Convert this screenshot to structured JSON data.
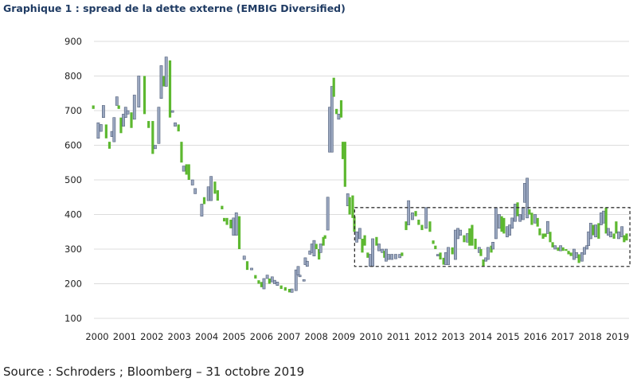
{
  "chart_data": {
    "type": "candlestick",
    "title": "Graphique 1 : spread de la dette externe (EMBIG Diversified)",
    "source": "Source : Schroders ; Bloomberg – 31 octobre 2019",
    "xlabel": "",
    "ylabel": "",
    "ylim": [
      100,
      900
    ],
    "xlim": [
      2000,
      2019
    ],
    "grid": true,
    "yticks": [
      "900",
      "800",
      "700",
      "600",
      "500",
      "400",
      "300",
      "200",
      "100"
    ],
    "xticks": [
      "2000",
      "2001",
      "2002",
      "2003",
      "2004",
      "2005",
      "2006",
      "2007",
      "2008",
      "2009",
      "2010",
      "2011",
      "2012",
      "2013",
      "2014",
      "2015",
      "2016",
      "2017",
      "2018",
      "2019"
    ],
    "colors": {
      "g": "#5db830",
      "b": "#9aa7c0",
      "b_stroke": "#4f5d78",
      "title": "#1f3b63"
    },
    "highlight_box": {
      "x": [
        2009.4,
        2019.45
      ],
      "y": [
        250,
        420
      ],
      "style": "dashed"
    },
    "candles_format": [
      "year",
      "low",
      "high",
      "color"
    ],
    "candles": [
      [
        1999.86,
        705,
        715,
        "g"
      ],
      [
        2000.04,
        620,
        665,
        "b"
      ],
      [
        2000.14,
        640,
        660,
        "b"
      ],
      [
        2000.23,
        680,
        715,
        "b"
      ],
      [
        2000.33,
        620,
        660,
        "g"
      ],
      [
        2000.45,
        590,
        610,
        "g"
      ],
      [
        2000.54,
        625,
        640,
        "b"
      ],
      [
        2000.62,
        610,
        680,
        "b"
      ],
      [
        2000.72,
        715,
        740,
        "b"
      ],
      [
        2000.79,
        705,
        715,
        "g"
      ],
      [
        2000.87,
        635,
        680,
        "g"
      ],
      [
        2000.96,
        655,
        690,
        "b"
      ],
      [
        2001.04,
        680,
        710,
        "b"
      ],
      [
        2001.12,
        690,
        700,
        "b"
      ],
      [
        2001.25,
        650,
        695,
        "g"
      ],
      [
        2001.36,
        675,
        745,
        "b"
      ],
      [
        2001.52,
        710,
        800,
        "b"
      ],
      [
        2001.73,
        690,
        800,
        "g"
      ],
      [
        2001.88,
        650,
        670,
        "g"
      ],
      [
        2002.03,
        575,
        670,
        "g"
      ],
      [
        2002.12,
        590,
        600,
        "b"
      ],
      [
        2002.25,
        605,
        710,
        "b"
      ],
      [
        2002.34,
        735,
        830,
        "b"
      ],
      [
        2002.44,
        770,
        800,
        "g"
      ],
      [
        2002.52,
        770,
        855,
        "b"
      ],
      [
        2002.66,
        680,
        845,
        "g"
      ],
      [
        2002.75,
        695,
        700,
        "b"
      ],
      [
        2002.85,
        655,
        665,
        "b"
      ],
      [
        2002.97,
        640,
        660,
        "g"
      ],
      [
        2003.08,
        550,
        610,
        "g"
      ],
      [
        2003.16,
        525,
        540,
        "b"
      ],
      [
        2003.26,
        515,
        545,
        "g"
      ],
      [
        2003.35,
        500,
        545,
        "g"
      ],
      [
        2003.48,
        485,
        500,
        "b"
      ],
      [
        2003.58,
        460,
        475,
        "b"
      ],
      [
        2003.82,
        395,
        430,
        "b"
      ],
      [
        2003.91,
        430,
        450,
        "g"
      ],
      [
        2004.06,
        440,
        480,
        "b"
      ],
      [
        2004.16,
        440,
        510,
        "b"
      ],
      [
        2004.3,
        460,
        495,
        "g"
      ],
      [
        2004.4,
        440,
        470,
        "g"
      ],
      [
        2004.56,
        415,
        425,
        "g"
      ],
      [
        2004.64,
        380,
        390,
        "g"
      ],
      [
        2004.74,
        370,
        390,
        "g"
      ],
      [
        2004.88,
        360,
        385,
        "g"
      ],
      [
        2004.98,
        340,
        390,
        "b"
      ],
      [
        2005.08,
        340,
        405,
        "b"
      ],
      [
        2005.19,
        300,
        395,
        "g"
      ],
      [
        2005.37,
        270,
        280,
        "b"
      ],
      [
        2005.48,
        240,
        265,
        "g"
      ],
      [
        2005.64,
        240,
        245,
        "b"
      ],
      [
        2005.78,
        215,
        225,
        "g"
      ],
      [
        2005.9,
        200,
        210,
        "g"
      ],
      [
        2006.0,
        190,
        205,
        "g"
      ],
      [
        2006.09,
        185,
        215,
        "b"
      ],
      [
        2006.21,
        215,
        225,
        "b"
      ],
      [
        2006.29,
        200,
        215,
        "g"
      ],
      [
        2006.39,
        205,
        220,
        "b"
      ],
      [
        2006.48,
        200,
        210,
        "b"
      ],
      [
        2006.58,
        195,
        205,
        "b"
      ],
      [
        2006.72,
        185,
        195,
        "g"
      ],
      [
        2006.87,
        180,
        190,
        "g"
      ],
      [
        2007.02,
        175,
        185,
        "g"
      ],
      [
        2007.11,
        175,
        185,
        "b"
      ],
      [
        2007.26,
        180,
        240,
        "b"
      ],
      [
        2007.34,
        225,
        250,
        "b"
      ],
      [
        2007.4,
        220,
        225,
        "b"
      ],
      [
        2007.55,
        208,
        212,
        "b"
      ],
      [
        2007.6,
        255,
        275,
        "b"
      ],
      [
        2007.67,
        250,
        265,
        "b"
      ],
      [
        2007.77,
        285,
        295,
        "b"
      ],
      [
        2007.84,
        290,
        315,
        "b"
      ],
      [
        2007.92,
        280,
        325,
        "b"
      ],
      [
        2008.0,
        300,
        315,
        "g"
      ],
      [
        2008.1,
        270,
        300,
        "g"
      ],
      [
        2008.16,
        290,
        315,
        "b"
      ],
      [
        2008.26,
        310,
        335,
        "g"
      ],
      [
        2008.32,
        330,
        340,
        "g"
      ],
      [
        2008.42,
        355,
        450,
        "b"
      ],
      [
        2008.49,
        580,
        710,
        "b"
      ],
      [
        2008.57,
        580,
        770,
        "b"
      ],
      [
        2008.64,
        740,
        795,
        "g"
      ],
      [
        2008.74,
        690,
        705,
        "g"
      ],
      [
        2008.82,
        675,
        690,
        "b"
      ],
      [
        2008.91,
        680,
        730,
        "g"
      ],
      [
        2008.97,
        560,
        610,
        "g"
      ],
      [
        2009.05,
        480,
        610,
        "g"
      ],
      [
        2009.15,
        425,
        460,
        "b"
      ],
      [
        2009.22,
        400,
        450,
        "g"
      ],
      [
        2009.33,
        390,
        455,
        "g"
      ],
      [
        2009.39,
        350,
        395,
        "g"
      ],
      [
        2009.48,
        320,
        350,
        "b"
      ],
      [
        2009.59,
        330,
        360,
        "b"
      ],
      [
        2009.68,
        290,
        330,
        "g"
      ],
      [
        2009.77,
        310,
        340,
        "g"
      ],
      [
        2009.88,
        275,
        290,
        "g"
      ],
      [
        2009.97,
        250,
        285,
        "b"
      ],
      [
        2010.06,
        250,
        330,
        "b"
      ],
      [
        2010.2,
        310,
        335,
        "g"
      ],
      [
        2010.29,
        295,
        315,
        "b"
      ],
      [
        2010.41,
        290,
        300,
        "b"
      ],
      [
        2010.49,
        275,
        295,
        "g"
      ],
      [
        2010.55,
        265,
        300,
        "b"
      ],
      [
        2010.64,
        270,
        285,
        "b"
      ],
      [
        2010.76,
        270,
        285,
        "b"
      ],
      [
        2010.9,
        272,
        285,
        "b"
      ],
      [
        2011.05,
        275,
        285,
        "b"
      ],
      [
        2011.13,
        280,
        290,
        "g"
      ],
      [
        2011.28,
        355,
        380,
        "g"
      ],
      [
        2011.37,
        370,
        440,
        "b"
      ],
      [
        2011.51,
        385,
        405,
        "b"
      ],
      [
        2011.63,
        395,
        410,
        "g"
      ],
      [
        2011.74,
        370,
        385,
        "g"
      ],
      [
        2011.86,
        355,
        370,
        "g"
      ],
      [
        2012.01,
        360,
        420,
        "b"
      ],
      [
        2012.15,
        350,
        380,
        "g"
      ],
      [
        2012.27,
        315,
        325,
        "g"
      ],
      [
        2012.35,
        300,
        310,
        "g"
      ],
      [
        2012.44,
        280,
        285,
        "b"
      ],
      [
        2012.53,
        270,
        290,
        "g"
      ],
      [
        2012.65,
        255,
        275,
        "g"
      ],
      [
        2012.73,
        255,
        290,
        "b"
      ],
      [
        2012.82,
        255,
        305,
        "b"
      ],
      [
        2012.97,
        285,
        305,
        "g"
      ],
      [
        2013.08,
        270,
        355,
        "b"
      ],
      [
        2013.17,
        330,
        360,
        "b"
      ],
      [
        2013.26,
        340,
        355,
        "b"
      ],
      [
        2013.4,
        320,
        340,
        "g"
      ],
      [
        2013.52,
        320,
        345,
        "b"
      ],
      [
        2013.6,
        310,
        360,
        "g"
      ],
      [
        2013.69,
        310,
        370,
        "g"
      ],
      [
        2013.81,
        300,
        330,
        "g"
      ],
      [
        2013.95,
        290,
        305,
        "b"
      ],
      [
        2014.01,
        280,
        300,
        "g"
      ],
      [
        2014.1,
        250,
        270,
        "g"
      ],
      [
        2014.19,
        265,
        275,
        "b"
      ],
      [
        2014.27,
        270,
        305,
        "b"
      ],
      [
        2014.39,
        290,
        310,
        "g"
      ],
      [
        2014.45,
        300,
        320,
        "b"
      ],
      [
        2014.56,
        330,
        420,
        "b"
      ],
      [
        2014.68,
        360,
        400,
        "b"
      ],
      [
        2014.77,
        350,
        395,
        "g"
      ],
      [
        2014.85,
        345,
        390,
        "g"
      ],
      [
        2014.97,
        335,
        365,
        "b"
      ],
      [
        2015.06,
        340,
        370,
        "b"
      ],
      [
        2015.15,
        360,
        390,
        "b"
      ],
      [
        2015.26,
        380,
        430,
        "b"
      ],
      [
        2015.35,
        395,
        435,
        "g"
      ],
      [
        2015.44,
        380,
        400,
        "b"
      ],
      [
        2015.55,
        385,
        420,
        "b"
      ],
      [
        2015.61,
        435,
        490,
        "b"
      ],
      [
        2015.7,
        390,
        505,
        "b"
      ],
      [
        2015.78,
        400,
        415,
        "g"
      ],
      [
        2015.87,
        370,
        405,
        "g"
      ],
      [
        2015.99,
        375,
        400,
        "b"
      ],
      [
        2016.08,
        365,
        390,
        "g"
      ],
      [
        2016.16,
        340,
        360,
        "g"
      ],
      [
        2016.28,
        330,
        345,
        "g"
      ],
      [
        2016.37,
        335,
        345,
        "g"
      ],
      [
        2016.45,
        345,
        380,
        "b"
      ],
      [
        2016.54,
        320,
        350,
        "g"
      ],
      [
        2016.63,
        305,
        320,
        "g"
      ],
      [
        2016.72,
        300,
        310,
        "b"
      ],
      [
        2016.83,
        295,
        305,
        "g"
      ],
      [
        2016.92,
        295,
        310,
        "b"
      ],
      [
        2017.01,
        295,
        305,
        "g"
      ],
      [
        2017.12,
        295,
        300,
        "g"
      ],
      [
        2017.21,
        285,
        295,
        "g"
      ],
      [
        2017.3,
        280,
        290,
        "g"
      ],
      [
        2017.41,
        270,
        300,
        "b"
      ],
      [
        2017.5,
        275,
        290,
        "b"
      ],
      [
        2017.59,
        260,
        285,
        "g"
      ],
      [
        2017.7,
        265,
        290,
        "b"
      ],
      [
        2017.79,
        285,
        305,
        "b"
      ],
      [
        2017.88,
        300,
        310,
        "b"
      ],
      [
        2017.94,
        310,
        350,
        "b"
      ],
      [
        2018.02,
        330,
        375,
        "b"
      ],
      [
        2018.11,
        340,
        370,
        "g"
      ],
      [
        2018.2,
        335,
        370,
        "b"
      ],
      [
        2018.31,
        330,
        375,
        "g"
      ],
      [
        2018.4,
        370,
        405,
        "b"
      ],
      [
        2018.49,
        375,
        410,
        "b"
      ],
      [
        2018.58,
        345,
        420,
        "g"
      ],
      [
        2018.66,
        340,
        360,
        "b"
      ],
      [
        2018.75,
        335,
        350,
        "b"
      ],
      [
        2018.87,
        330,
        345,
        "g"
      ],
      [
        2018.95,
        345,
        380,
        "g"
      ],
      [
        2019.04,
        330,
        350,
        "b"
      ],
      [
        2019.16,
        335,
        365,
        "b"
      ],
      [
        2019.24,
        320,
        340,
        "g"
      ],
      [
        2019.33,
        325,
        345,
        "g"
      ]
    ]
  }
}
